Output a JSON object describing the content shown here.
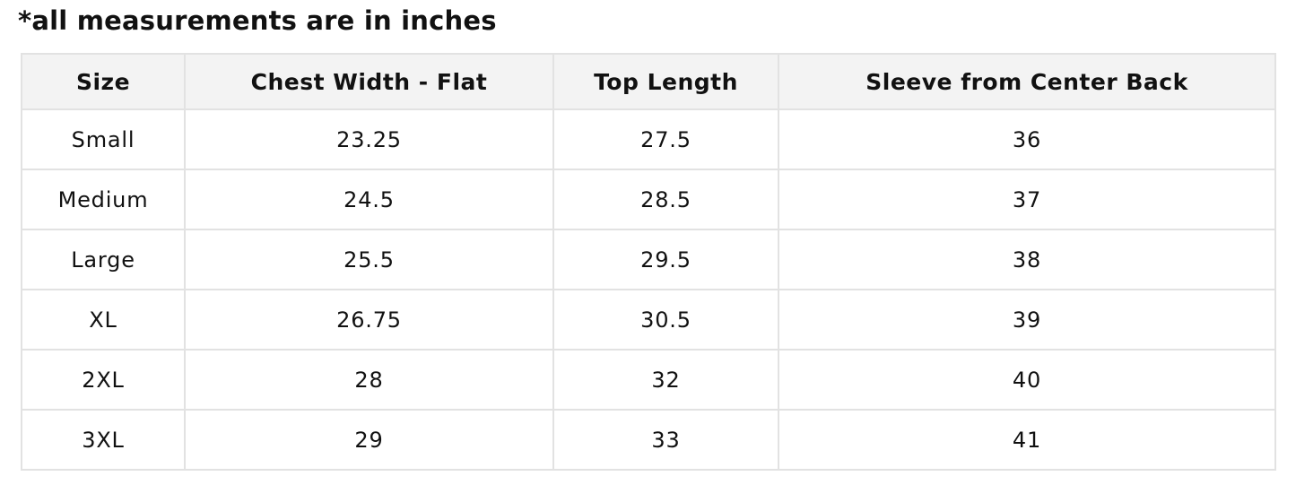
{
  "note": "*all measurements are in inches",
  "table": {
    "headers": [
      "Size",
      "Chest Width - Flat",
      "Top Length",
      "Sleeve from Center Back"
    ],
    "rows": [
      [
        "Small",
        "23.25",
        "27.5",
        "36"
      ],
      [
        "Medium",
        "24.5",
        "28.5",
        "37"
      ],
      [
        "Large",
        "25.5",
        "29.5",
        "38"
      ],
      [
        "XL",
        "26.75",
        "30.5",
        "39"
      ],
      [
        "2XL",
        "28",
        "32",
        "40"
      ],
      [
        "3XL",
        "29",
        "33",
        "41"
      ]
    ]
  }
}
